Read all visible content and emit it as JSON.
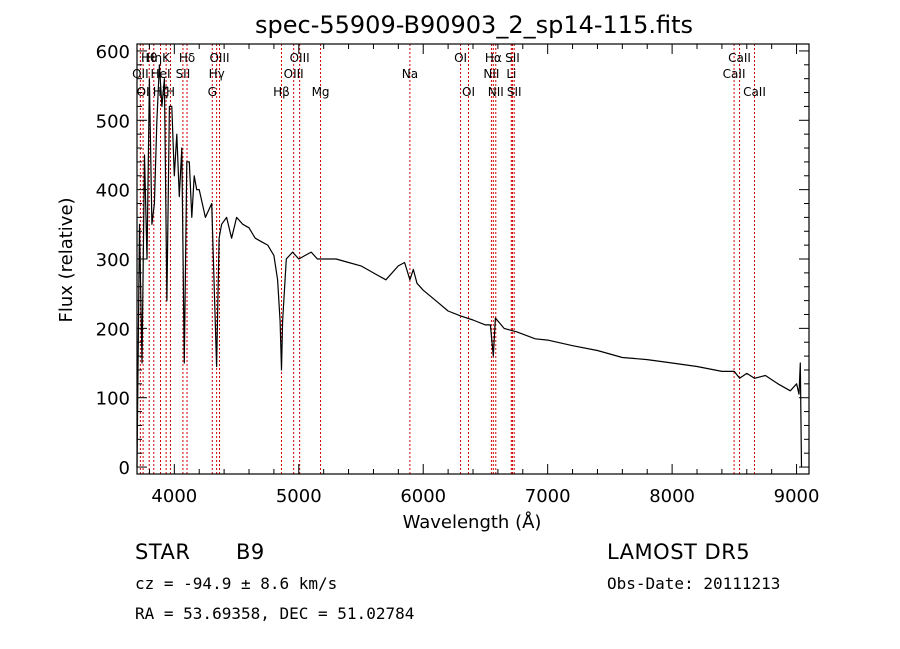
{
  "chart_data": {
    "type": "line",
    "title": "spec-55909-B90903_2_sp14-115.fits",
    "xlabel": "Wavelength (Å)",
    "ylabel": "Flux (relative)",
    "xlim": [
      3700,
      9100
    ],
    "ylim": [
      -10,
      610
    ],
    "xticks": [
      4000,
      5000,
      6000,
      7000,
      8000,
      9000
    ],
    "yticks": [
      0,
      100,
      200,
      300,
      400,
      500,
      600
    ],
    "line_color": "#000000",
    "marker_color": "#cc0000",
    "spectrum": {
      "x": [
        3700,
        3720,
        3740,
        3760,
        3780,
        3800,
        3820,
        3840,
        3860,
        3880,
        3900,
        3920,
        3940,
        3960,
        3980,
        4000,
        4020,
        4040,
        4060,
        4080,
        4100,
        4120,
        4140,
        4160,
        4180,
        4200,
        4250,
        4300,
        4340,
        4360,
        4380,
        4420,
        4460,
        4500,
        4550,
        4600,
        4650,
        4700,
        4750,
        4800,
        4830,
        4850,
        4861,
        4870,
        4900,
        4950,
        5000,
        5050,
        5100,
        5150,
        5200,
        5300,
        5400,
        5500,
        5600,
        5700,
        5800,
        5850,
        5893,
        5920,
        5950,
        6000,
        6100,
        6200,
        6300,
        6400,
        6500,
        6540,
        6563,
        6580,
        6650,
        6750,
        6900,
        7000,
        7200,
        7400,
        7600,
        7800,
        8000,
        8200,
        8400,
        8500,
        8542,
        8600,
        8662,
        8750,
        8850,
        8900,
        8950,
        9000,
        9020,
        9030,
        9040
      ],
      "y": [
        0,
        350,
        150,
        450,
        300,
        560,
        350,
        380,
        500,
        580,
        520,
        560,
        240,
        520,
        520,
        420,
        480,
        390,
        460,
        150,
        440,
        440,
        360,
        420,
        400,
        400,
        360,
        380,
        145,
        330,
        350,
        360,
        330,
        360,
        350,
        345,
        330,
        325,
        320,
        305,
        270,
        210,
        140,
        210,
        300,
        310,
        300,
        305,
        310,
        300,
        300,
        300,
        295,
        290,
        280,
        270,
        290,
        295,
        270,
        285,
        265,
        255,
        240,
        225,
        218,
        212,
        205,
        205,
        160,
        215,
        200,
        195,
        185,
        183,
        175,
        168,
        158,
        155,
        150,
        145,
        138,
        138,
        128,
        135,
        128,
        132,
        120,
        115,
        110,
        120,
        105,
        150,
        0
      ]
    },
    "line_markers": [
      {
        "label": "OI",
        "x": 3749,
        "row": 2
      },
      {
        "label": "OII",
        "x": 3727,
        "row": 1
      },
      {
        "label": "Hθ",
        "x": 3798,
        "row": 0
      },
      {
        "label": "Hη",
        "x": 3835,
        "row": 0
      },
      {
        "label": "Hζ",
        "x": 3889,
        "row": 2
      },
      {
        "label": "HeI",
        "x": 3889,
        "row": 1
      },
      {
        "label": "K",
        "x": 3934,
        "row": 0
      },
      {
        "label": "H",
        "x": 3969,
        "row": 2
      },
      {
        "label": "SII",
        "x": 4069,
        "row": 1
      },
      {
        "label": "Hδ",
        "x": 4102,
        "row": 0
      },
      {
        "label": "OIII",
        "x": 4363,
        "row": 0
      },
      {
        "label": "Hγ",
        "x": 4340,
        "row": 1
      },
      {
        "label": "G",
        "x": 4305,
        "row": 2
      },
      {
        "label": "Hβ",
        "x": 4861,
        "row": 2
      },
      {
        "label": "OIII",
        "x": 4959,
        "row": 1
      },
      {
        "label": "OIII",
        "x": 5007,
        "row": 0
      },
      {
        "label": "Mg",
        "x": 5175,
        "row": 2
      },
      {
        "label": "Na",
        "x": 5893,
        "row": 1
      },
      {
        "label": "OI",
        "x": 6300,
        "row": 0
      },
      {
        "label": "OI",
        "x": 6364,
        "row": 2
      },
      {
        "label": "Hα",
        "x": 6563,
        "row": 0
      },
      {
        "label": "NII",
        "x": 6548,
        "row": 1
      },
      {
        "label": "NII",
        "x": 6583,
        "row": 2
      },
      {
        "label": "SII",
        "x": 6717,
        "row": 0
      },
      {
        "label": "Li",
        "x": 6708,
        "row": 1
      },
      {
        "label": "SII",
        "x": 6731,
        "row": 2
      },
      {
        "label": "CaII",
        "x": 8498,
        "row": 1
      },
      {
        "label": "CaII",
        "x": 8542,
        "row": 0
      },
      {
        "label": "CaII",
        "x": 8662,
        "row": 2
      }
    ]
  },
  "info": {
    "class_label": "STAR",
    "subclass": "B9",
    "survey": "LAMOST DR5",
    "velocity": "cz = -94.9 ± 8.6 km/s",
    "obs_date": "Obs-Date: 20111213",
    "coords": "RA = 53.69358, DEC = 51.02784"
  }
}
